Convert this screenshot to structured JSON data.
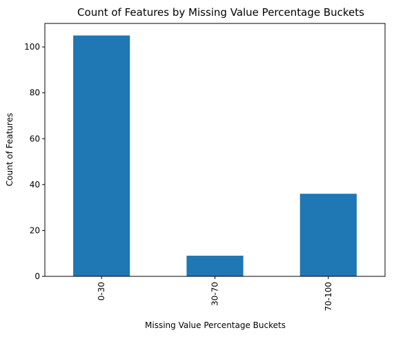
{
  "chart_data": {
    "type": "bar",
    "title": "Count of Features by Missing Value Percentage Buckets",
    "xlabel": "Missing Value Percentage Buckets",
    "ylabel": "Count of Features",
    "categories": [
      "0-30",
      "30-70",
      "70-100"
    ],
    "values": [
      105,
      9,
      36
    ],
    "ylim": [
      0,
      110.25
    ],
    "yticks": [
      0,
      20,
      40,
      60,
      80,
      100
    ],
    "grid": false,
    "legend": "none",
    "bar_color": "#1f77b4"
  }
}
